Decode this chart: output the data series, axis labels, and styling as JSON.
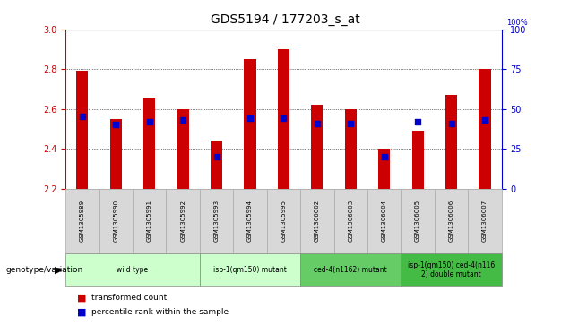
{
  "title": "GDS5194 / 177203_s_at",
  "samples": [
    "GSM1305989",
    "GSM1305990",
    "GSM1305991",
    "GSM1305992",
    "GSM1305993",
    "GSM1305994",
    "GSM1305995",
    "GSM1306002",
    "GSM1306003",
    "GSM1306004",
    "GSM1306005",
    "GSM1306006",
    "GSM1306007"
  ],
  "transformed_counts": [
    2.79,
    2.55,
    2.65,
    2.6,
    2.44,
    2.85,
    2.9,
    2.62,
    2.6,
    2.4,
    2.49,
    2.67,
    2.8
  ],
  "percentile_ranks": [
    45,
    40,
    42,
    43,
    20,
    44,
    44,
    41,
    41,
    20,
    42,
    41,
    43
  ],
  "ylim_left": [
    2.2,
    3.0
  ],
  "ylim_right": [
    0,
    100
  ],
  "yticks_left": [
    2.2,
    2.4,
    2.6,
    2.8,
    3.0
  ],
  "yticks_right": [
    0,
    25,
    50,
    75,
    100
  ],
  "bar_color": "#cc0000",
  "marker_color": "#0000cc",
  "bar_bottom": 2.2,
  "groups": [
    {
      "label": "wild type",
      "indices": [
        0,
        1,
        2,
        3
      ],
      "color": "#ccffcc"
    },
    {
      "label": "isp-1(qm150) mutant",
      "indices": [
        4,
        5,
        6
      ],
      "color": "#ccffcc"
    },
    {
      "label": "ced-4(n1162) mutant",
      "indices": [
        7,
        8,
        9
      ],
      "color": "#66dd66"
    },
    {
      "label": "isp-1(qm150) ced-4(n116\n2) double mutant",
      "indices": [
        10,
        11,
        12
      ],
      "color": "#44cc44"
    }
  ],
  "genotype_label": "genotype/variation",
  "legend_red": "transformed count",
  "legend_blue": "percentile rank within the sample",
  "axis_color_left": "#cc0000",
  "axis_color_right": "#0000cc",
  "title_fontsize": 10,
  "tick_fontsize": 7,
  "bar_width": 0.35,
  "label_box_color": "#d8d8d8",
  "label_box_edge": "#aaaaaa"
}
